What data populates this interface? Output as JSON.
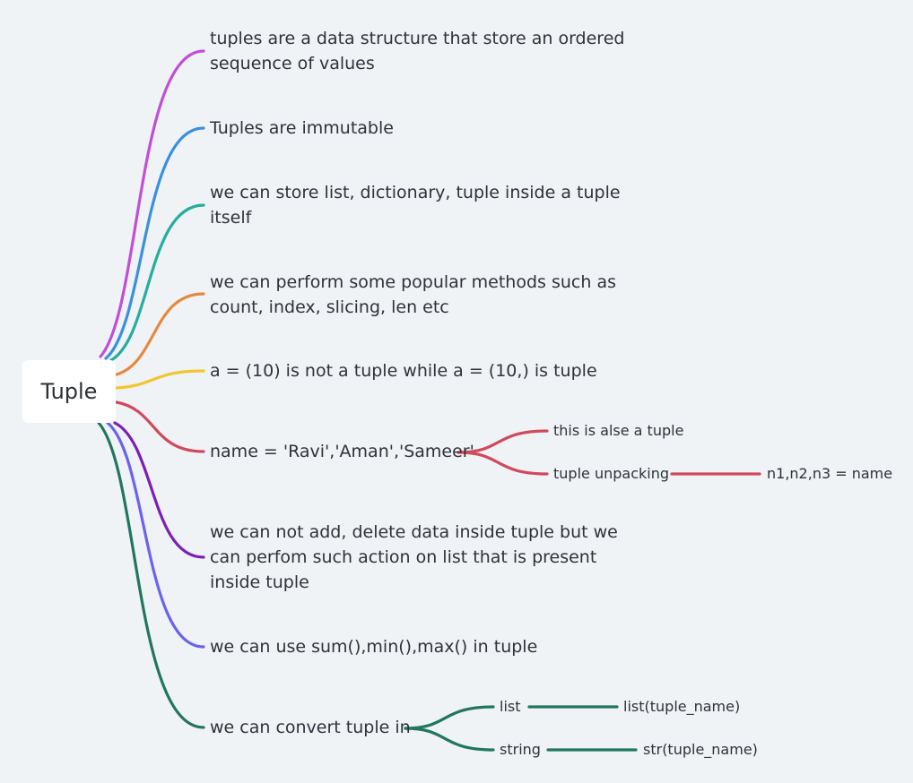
{
  "root": {
    "label": "Tuple"
  },
  "branches": [
    {
      "lines": [
        "tuples are a data structure that store an ordered",
        "sequence of values"
      ],
      "color": "#c14fd6"
    },
    {
      "lines": [
        "Tuples are immutable"
      ],
      "color": "#3b8fde"
    },
    {
      "lines": [
        "we can store list, dictionary, tuple inside a tuple",
        "itself"
      ],
      "color": "#26ad9c"
    },
    {
      "lines": [
        "we can perform some popular methods such as",
        "count, index, slicing, len etc"
      ],
      "color": "#e6893f"
    },
    {
      "lines": [
        "a = (10) is not a tuple while a = (10,) is tuple"
      ],
      "color": "#f2c531"
    },
    {
      "lines": [
        "name = 'Ravi','Aman','Sameer'"
      ],
      "color": "#d04a5e",
      "children": [
        {
          "label": "this is alse a tuple"
        },
        {
          "label": "tuple unpacking",
          "children": [
            {
              "label": "n1,n2,n3 = name"
            }
          ]
        }
      ]
    },
    {
      "lines": [
        "we can not add, delete data inside tuple but we",
        "can perfom such action on list that is present",
        "inside tuple"
      ],
      "color": "#7a1fb8"
    },
    {
      "lines": [
        "we can use sum(),min(),max() in tuple"
      ],
      "color": "#6b63ee"
    },
    {
      "lines": [
        "we can convert tuple in"
      ],
      "color": "#21765f",
      "children": [
        {
          "label": "list",
          "children": [
            {
              "label": "list(tuple_name)"
            }
          ]
        },
        {
          "label": "string",
          "children": [
            {
              "label": "str(tuple_name)"
            }
          ]
        }
      ]
    }
  ]
}
